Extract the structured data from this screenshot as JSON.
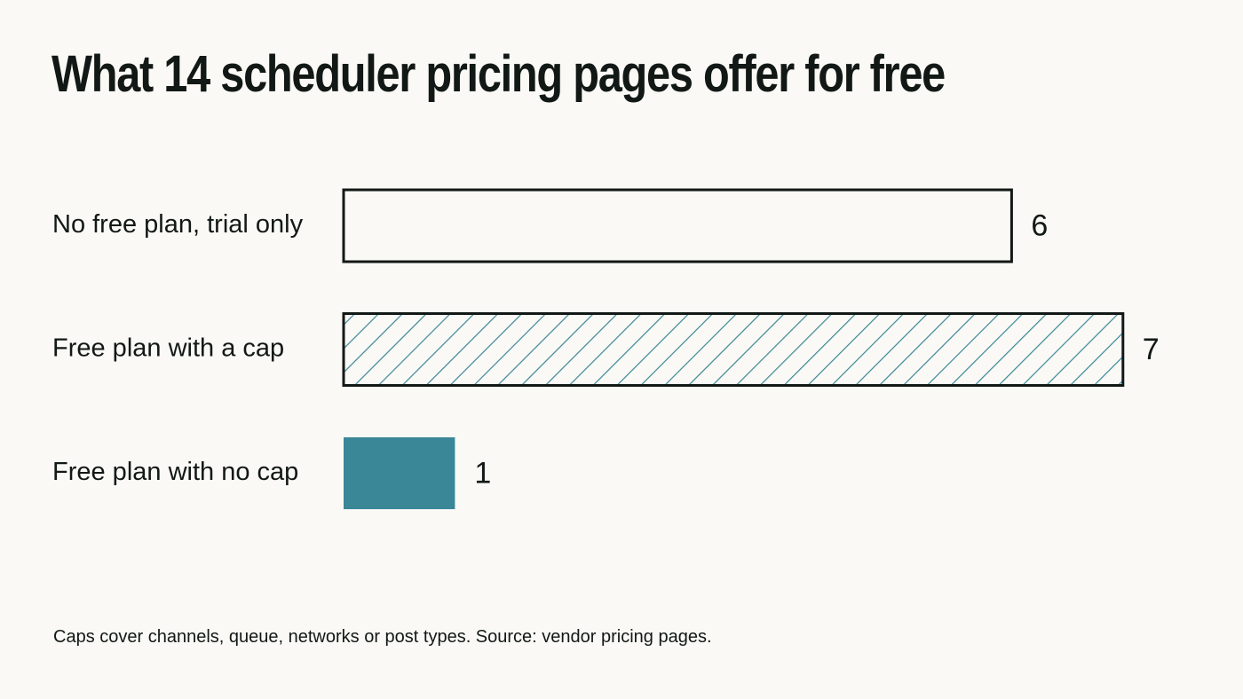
{
  "title": "What 14 scheduler pricing pages offer for free",
  "footnote": "Caps cover channels, queue, networks or post types. Source: vendor pricing pages.",
  "colors": {
    "background": "#faf9f5",
    "text": "#121815",
    "accent": "#3a8797",
    "outline": "#121815"
  },
  "chart_data": {
    "type": "bar",
    "orientation": "horizontal",
    "categories": [
      "No free plan, trial only",
      "Free plan with a cap",
      "Free plan with no cap"
    ],
    "values": [
      6,
      7,
      1
    ],
    "bar_styles": [
      "outline",
      "hatched",
      "solid"
    ],
    "title": "What 14 scheduler pricing pages offer for free",
    "xlabel": "",
    "ylabel": "",
    "xlim": [
      0,
      7
    ],
    "grid": false,
    "legend": "none"
  }
}
